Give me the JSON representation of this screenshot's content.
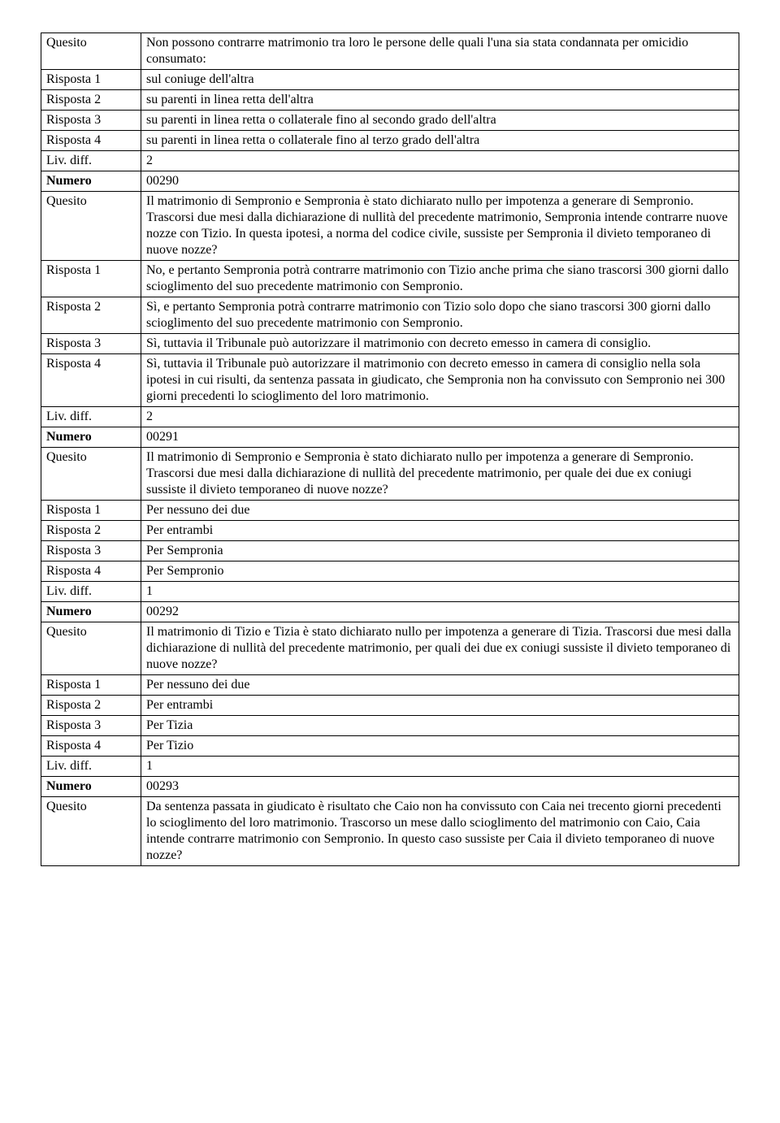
{
  "labels": {
    "quesito": "Quesito",
    "risposta1": "Risposta 1",
    "risposta2": "Risposta 2",
    "risposta3": "Risposta 3",
    "risposta4": "Risposta 4",
    "livdiff": "Liv. diff.",
    "numero": "Numero"
  },
  "blocks": [
    {
      "quesito": "Non possono contrarre matrimonio tra loro le persone delle quali l'una sia stata condannata per omicidio consumato:",
      "r1": "sul coniuge dell'altra",
      "r2": "su parenti in linea retta dell'altra",
      "r3": "su parenti in linea retta o collaterale fino al secondo grado dell'altra",
      "r4": "su parenti in linea retta o collaterale fino al terzo grado dell'altra",
      "liv": "2",
      "num": "00290"
    },
    {
      "quesito": "Il matrimonio di Sempronio e Sempronia è stato dichiarato nullo per impotenza a generare di Sempronio. Trascorsi due mesi dalla dichiarazione di nullità del precedente matrimonio, Sempronia intende contrarre nuove nozze con Tizio. In questa ipotesi, a norma del codice civile, sussiste per Sempronia il divieto temporaneo di nuove nozze?",
      "r1": "No, e pertanto Sempronia potrà contrarre matrimonio con Tizio anche prima che siano trascorsi 300 giorni dallo scioglimento del suo precedente matrimonio con Sempronio.",
      "r2": "Sì, e pertanto Sempronia potrà contrarre matrimonio con Tizio solo dopo che siano trascorsi 300 giorni dallo scioglimento del suo precedente matrimonio con Sempronio.",
      "r3": "Sì, tuttavia il Tribunale può autorizzare il matrimonio con decreto emesso in camera di consiglio.",
      "r4": "Sì, tuttavia il Tribunale può autorizzare il matrimonio con decreto emesso in camera di consiglio nella sola ipotesi in cui risulti, da sentenza passata in giudicato, che Sempronia non ha convissuto con Sempronio nei 300 giorni precedenti lo scioglimento del loro matrimonio.",
      "liv": "2",
      "num": "00291"
    },
    {
      "quesito": "Il matrimonio di Sempronio e Sempronia è stato dichiarato nullo per impotenza a generare di Sempronio. Trascorsi due mesi dalla dichiarazione di nullità del precedente matrimonio, per quale dei due ex coniugi sussiste il divieto temporaneo di nuove nozze?",
      "r1": "Per nessuno dei due",
      "r2": "Per entrambi",
      "r3": "Per Sempronia",
      "r4": "Per Sempronio",
      "liv": "1",
      "num": "00292"
    },
    {
      "quesito": "Il matrimonio di Tizio e Tizia è stato dichiarato nullo per impotenza a generare di Tizia. Trascorsi due mesi dalla dichiarazione di nullità del precedente matrimonio, per quali dei due ex coniugi sussiste il divieto temporaneo di nuove nozze?",
      "r1": "Per nessuno dei due",
      "r2": "Per entrambi",
      "r3": "Per Tizia",
      "r4": "Per Tizio",
      "liv": "1",
      "num": "00293"
    },
    {
      "quesito": "Da sentenza passata in giudicato è risultato che Caio non ha convissuto con Caia nei trecento giorni precedenti lo scioglimento del loro matrimonio. Trascorso un mese dallo scioglimento del matrimonio con Caio, Caia intende contrarre matrimonio con Sempronio. In questo caso sussiste per Caia il divieto temporaneo di nuove nozze?"
    }
  ]
}
